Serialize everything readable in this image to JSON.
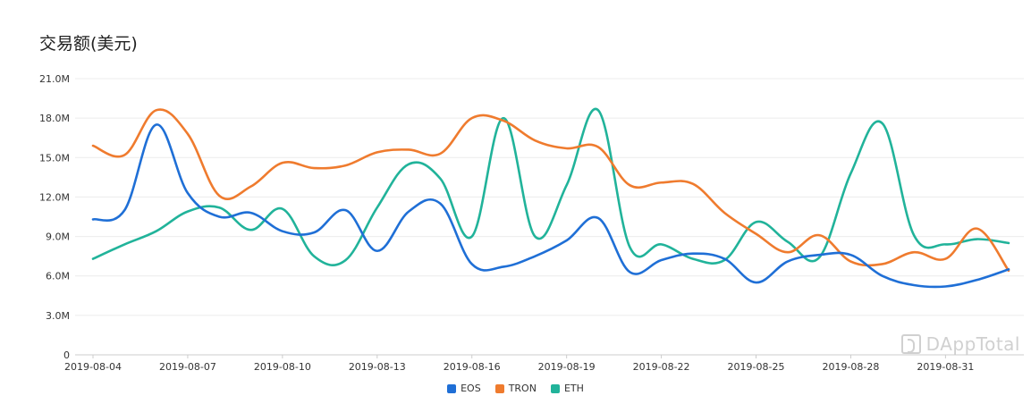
{
  "chart_data": {
    "type": "line",
    "title": "交易额(美元)",
    "xlabel": "",
    "ylabel": "",
    "ylim": [
      0,
      21000000
    ],
    "y_ticks": [
      {
        "value": 0,
        "label": "0"
      },
      {
        "value": 3000000,
        "label": "3.0M"
      },
      {
        "value": 6000000,
        "label": "6.0M"
      },
      {
        "value": 9000000,
        "label": "9.0M"
      },
      {
        "value": 12000000,
        "label": "12.0M"
      },
      {
        "value": 15000000,
        "label": "15.0M"
      },
      {
        "value": 18000000,
        "label": "18.0M"
      },
      {
        "value": 21000000,
        "label": "21.0M"
      }
    ],
    "x_tick_labels": [
      "2019-08-04",
      "2019-08-07",
      "2019-08-10",
      "2019-08-13",
      "2019-08-16",
      "2019-08-19",
      "2019-08-22",
      "2019-08-25",
      "2019-08-28",
      "2019-08-31"
    ],
    "x_tick_step": 3,
    "x": [
      "2019-08-04",
      "2019-08-05",
      "2019-08-06",
      "2019-08-07",
      "2019-08-08",
      "2019-08-09",
      "2019-08-10",
      "2019-08-11",
      "2019-08-12",
      "2019-08-13",
      "2019-08-14",
      "2019-08-15",
      "2019-08-16",
      "2019-08-17",
      "2019-08-18",
      "2019-08-19",
      "2019-08-20",
      "2019-08-21",
      "2019-08-22",
      "2019-08-23",
      "2019-08-24",
      "2019-08-25",
      "2019-08-26",
      "2019-08-27",
      "2019-08-28",
      "2019-08-29",
      "2019-08-30",
      "2019-08-31",
      "2019-09-01",
      "2019-09-02"
    ],
    "grid": true,
    "legend_position": "bottom",
    "series": [
      {
        "name": "EOS",
        "color": "#1f6fd6",
        "values": [
          10300000,
          11000000,
          17500000,
          12300000,
          10500000,
          10800000,
          9400000,
          9300000,
          11000000,
          7900000,
          10900000,
          11500000,
          6900000,
          6700000,
          7500000,
          8700000,
          10400000,
          6300000,
          7200000,
          7700000,
          7300000,
          5500000,
          7100000,
          7600000,
          7600000,
          6000000,
          5300000,
          5200000,
          5700000,
          6500000
        ]
      },
      {
        "name": "TRON",
        "color": "#ef7b2e",
        "values": [
          15900000,
          15200000,
          18600000,
          16800000,
          12100000,
          12800000,
          14600000,
          14200000,
          14400000,
          15400000,
          15600000,
          15300000,
          18000000,
          17800000,
          16300000,
          15700000,
          15800000,
          12900000,
          13100000,
          13000000,
          10800000,
          9200000,
          7800000,
          9100000,
          7100000,
          6900000,
          7800000,
          7300000,
          9600000,
          6400000
        ]
      },
      {
        "name": "ETH",
        "color": "#21b39a",
        "values": [
          7300000,
          8400000,
          9400000,
          10900000,
          11200000,
          9500000,
          11100000,
          7500000,
          7200000,
          11200000,
          14500000,
          13400000,
          9000000,
          18000000,
          9000000,
          12900000,
          18600000,
          8200000,
          8400000,
          7300000,
          7200000,
          10100000,
          8600000,
          7400000,
          13800000,
          17600000,
          9100000,
          8400000,
          8800000,
          8500000
        ]
      }
    ]
  },
  "watermark": {
    "text": "DAppTotal"
  }
}
